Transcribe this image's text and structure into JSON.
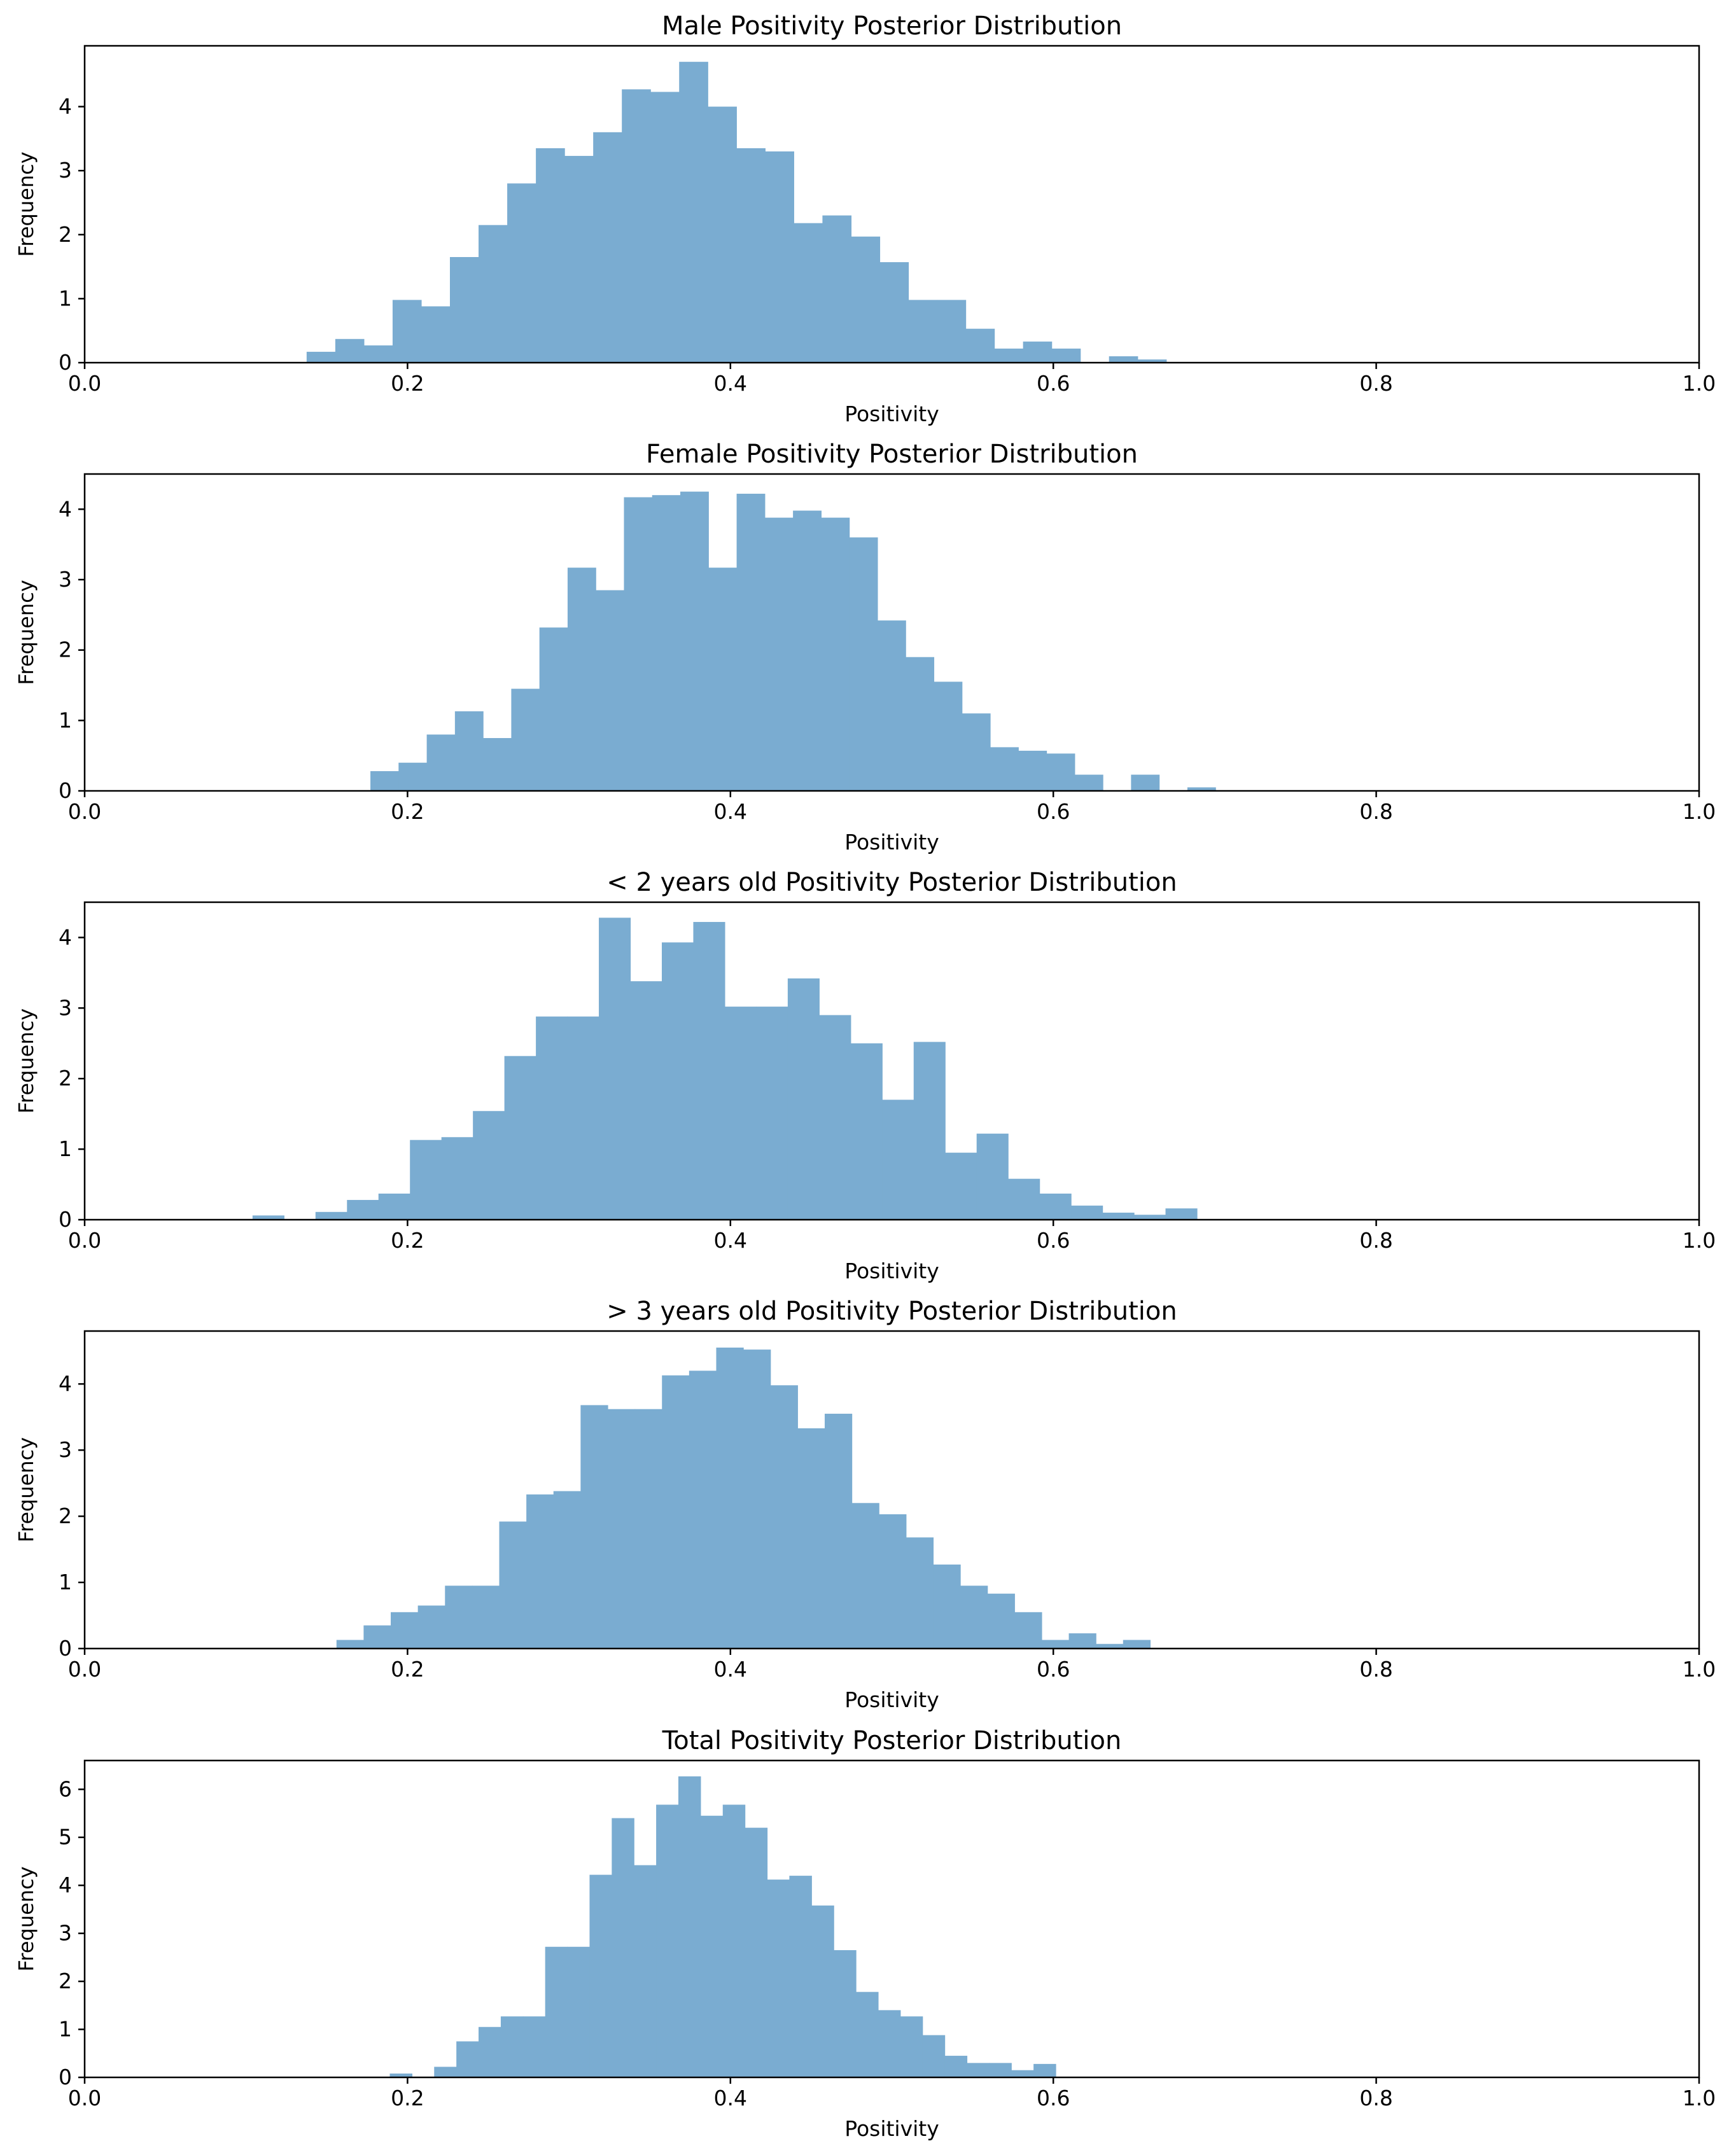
{
  "chart_data": [
    {
      "type": "bar",
      "title": "Male Positivity Posterior Distribution",
      "xlabel": "Positivity",
      "ylabel": "Frequency",
      "xlim": [
        0.0,
        1.0
      ],
      "ylim": [
        0,
        4.95
      ],
      "x_ticks": [
        "0.0",
        "0.2",
        "0.4",
        "0.6",
        "0.8",
        "1.0"
      ],
      "y_ticks": [
        "0",
        "1",
        "2",
        "3",
        "4"
      ],
      "bin_start": 0.1375,
      "bin_width": 0.01775,
      "values": [
        0.17,
        0.37,
        0.27,
        0.98,
        0.88,
        1.65,
        2.15,
        2.8,
        3.35,
        3.23,
        3.6,
        4.27,
        4.23,
        4.7,
        4.0,
        3.35,
        3.3,
        2.18,
        2.3,
        1.97,
        1.57,
        0.98,
        0.98,
        0.53,
        0.22,
        0.33,
        0.22,
        0.0,
        0.1,
        0.05
      ]
    },
    {
      "type": "bar",
      "title": "Female Positivity Posterior Distribution",
      "xlabel": "Positivity",
      "ylabel": "Frequency",
      "xlim": [
        0.0,
        1.0
      ],
      "ylim": [
        0,
        4.5
      ],
      "x_ticks": [
        "0.0",
        "0.2",
        "0.4",
        "0.6",
        "0.8",
        "1.0"
      ],
      "y_ticks": [
        "0",
        "1",
        "2",
        "3",
        "4"
      ],
      "bin_start": 0.177,
      "bin_width": 0.01745,
      "values": [
        0.28,
        0.4,
        0.8,
        1.13,
        0.75,
        1.45,
        2.32,
        3.17,
        2.85,
        4.17,
        4.2,
        4.25,
        3.17,
        4.22,
        3.88,
        3.98,
        3.88,
        3.6,
        2.42,
        1.9,
        1.55,
        1.1,
        0.62,
        0.57,
        0.53,
        0.23,
        0.0,
        0.23,
        0.0,
        0.05
      ]
    },
    {
      "type": "bar",
      "title": "< 2 years old Positivity Posterior Distribution",
      "xlabel": "Positivity",
      "ylabel": "Frequency",
      "xlim": [
        0.0,
        1.0
      ],
      "ylim": [
        0,
        4.5
      ],
      "x_ticks": [
        "0.0",
        "0.2",
        "0.4",
        "0.6",
        "0.8",
        "1.0"
      ],
      "y_ticks": [
        "0",
        "1",
        "2",
        "3",
        "4"
      ],
      "bin_start": 0.104,
      "bin_width": 0.0195,
      "values": [
        0.06,
        0.0,
        0.11,
        0.28,
        0.37,
        1.13,
        1.17,
        1.54,
        2.32,
        2.88,
        2.88,
        4.28,
        3.38,
        3.93,
        4.22,
        3.02,
        3.02,
        3.42,
        2.9,
        2.5,
        1.7,
        2.52,
        0.95,
        1.22,
        0.58,
        0.37,
        0.2,
        0.1,
        0.07,
        0.16
      ]
    },
    {
      "type": "bar",
      "title": "> 3 years old Positivity Posterior Distribution",
      "xlabel": "Positivity",
      "ylabel": "Frequency",
      "xlim": [
        0.0,
        1.0
      ],
      "ylim": [
        0,
        4.8
      ],
      "x_ticks": [
        "0.0",
        "0.2",
        "0.4",
        "0.6",
        "0.8",
        "1.0"
      ],
      "y_ticks": [
        "0",
        "1",
        "2",
        "3",
        "4"
      ],
      "bin_start": 0.156,
      "bin_width": 0.0168,
      "values": [
        0.13,
        0.35,
        0.55,
        0.65,
        0.95,
        0.95,
        1.92,
        2.33,
        2.38,
        3.68,
        3.62,
        3.62,
        4.13,
        4.2,
        4.55,
        4.52,
        3.98,
        3.33,
        3.55,
        2.2,
        2.03,
        1.68,
        1.27,
        0.95,
        0.83,
        0.55,
        0.13,
        0.23,
        0.07,
        0.13
      ]
    },
    {
      "type": "bar",
      "title": "Total Positivity Posterior Distribution",
      "xlabel": "Positivity",
      "ylabel": "Frequency",
      "xlim": [
        0.0,
        1.0
      ],
      "ylim": [
        0,
        6.6
      ],
      "x_ticks": [
        "0.0",
        "0.2",
        "0.4",
        "0.6",
        "0.8",
        "1.0"
      ],
      "y_ticks": [
        "0",
        "1",
        "2",
        "3",
        "4",
        "5",
        "6"
      ],
      "bin_start": 0.189,
      "bin_width": 0.01375,
      "values": [
        0.08,
        0.0,
        0.22,
        0.75,
        1.05,
        1.27,
        1.27,
        2.72,
        2.72,
        4.22,
        5.4,
        4.42,
        5.68,
        6.27,
        5.45,
        5.68,
        5.2,
        4.12,
        4.2,
        3.58,
        2.65,
        1.78,
        1.4,
        1.27,
        0.88,
        0.45,
        0.3,
        0.3,
        0.15,
        0.28
      ]
    }
  ],
  "colors": {
    "bar": "#7aacd1",
    "axis": "#000000",
    "background": "#ffffff"
  }
}
